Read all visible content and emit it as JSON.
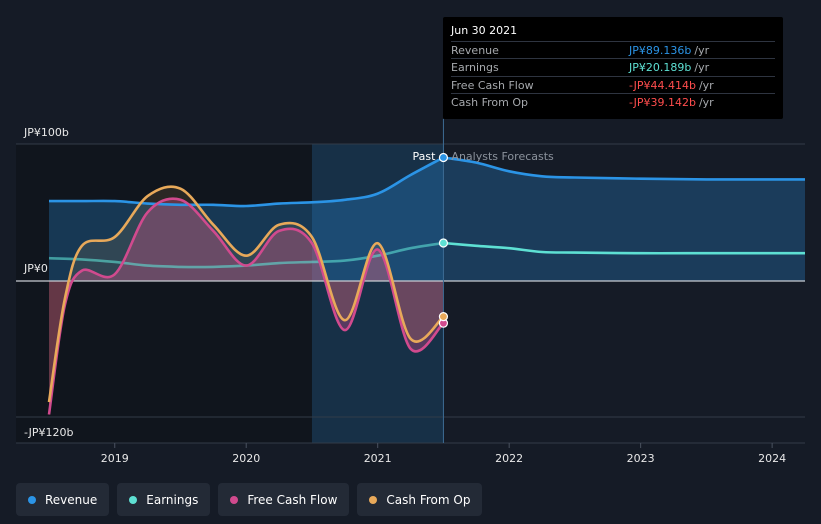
{
  "chart_data": {
    "type": "line",
    "x_axis": {
      "ticks": [
        "2019",
        "2020",
        "2021",
        "2022",
        "2023",
        "2024"
      ],
      "range": [
        2018.5,
        2024.25
      ]
    },
    "y_axis": {
      "labels": [
        "JP¥100b",
        "JP¥0",
        "-JP¥120b"
      ],
      "range": [
        -120,
        100
      ]
    },
    "past_label": "Past",
    "forecast_label": "Analysts Forecasts",
    "past_end_x": 2021.5,
    "highlight_start_x": 2020.5,
    "series": [
      {
        "name": "Revenue",
        "color": "#2b94e6",
        "points": [
          [
            2018.5,
            54
          ],
          [
            2018.75,
            54
          ],
          [
            2019,
            54
          ],
          [
            2019.25,
            52
          ],
          [
            2019.5,
            51
          ],
          [
            2019.75,
            51
          ],
          [
            2020,
            50
          ],
          [
            2020.25,
            52
          ],
          [
            2020.5,
            53
          ],
          [
            2020.75,
            55
          ],
          [
            2021,
            60
          ],
          [
            2021.25,
            75
          ],
          [
            2021.5,
            89.1
          ],
          [
            2021.75,
            85
          ],
          [
            2022,
            78
          ],
          [
            2022.25,
            74
          ],
          [
            2022.5,
            73
          ],
          [
            2023,
            72
          ],
          [
            2023.5,
            71.5
          ],
          [
            2024,
            71.5
          ],
          [
            2024.25,
            71.5
          ]
        ]
      },
      {
        "name": "Earnings",
        "color": "#5ee0d3",
        "points": [
          [
            2018.5,
            8
          ],
          [
            2018.75,
            7
          ],
          [
            2019,
            5
          ],
          [
            2019.25,
            2
          ],
          [
            2019.5,
            1
          ],
          [
            2019.75,
            1
          ],
          [
            2020,
            2
          ],
          [
            2020.25,
            4
          ],
          [
            2020.5,
            5
          ],
          [
            2020.75,
            6
          ],
          [
            2021,
            10
          ],
          [
            2021.25,
            16
          ],
          [
            2021.5,
            20.2
          ],
          [
            2021.75,
            18
          ],
          [
            2022,
            16
          ],
          [
            2022.25,
            13
          ],
          [
            2022.5,
            12.5
          ],
          [
            2023,
            12
          ],
          [
            2023.5,
            12
          ],
          [
            2024,
            12
          ],
          [
            2024.25,
            12
          ]
        ]
      },
      {
        "name": "Free Cash Flow",
        "color": "#d14a8e",
        "points": [
          [
            2018.5,
            -118
          ],
          [
            2018.62,
            -30
          ],
          [
            2018.75,
            -2
          ],
          [
            2019,
            -5
          ],
          [
            2019.25,
            45
          ],
          [
            2019.5,
            55
          ],
          [
            2019.75,
            30
          ],
          [
            2020,
            2
          ],
          [
            2020.25,
            30
          ],
          [
            2020.5,
            20
          ],
          [
            2020.75,
            -50
          ],
          [
            2021,
            15
          ],
          [
            2021.25,
            -65
          ],
          [
            2021.5,
            -44.4
          ]
        ]
      },
      {
        "name": "Cash From Op",
        "color": "#e8a95a",
        "points": [
          [
            2018.5,
            -108
          ],
          [
            2018.62,
            -25
          ],
          [
            2018.75,
            18
          ],
          [
            2019,
            25
          ],
          [
            2019.25,
            58
          ],
          [
            2019.5,
            64
          ],
          [
            2019.75,
            35
          ],
          [
            2020,
            10
          ],
          [
            2020.25,
            35
          ],
          [
            2020.5,
            25
          ],
          [
            2020.75,
            -42
          ],
          [
            2021,
            20
          ],
          [
            2021.25,
            -57
          ],
          [
            2021.5,
            -39.1
          ]
        ]
      }
    ]
  },
  "tooltip": {
    "date": "Jun 30 2021",
    "rows": [
      {
        "label": "Revenue",
        "value": "JP¥89.136b",
        "unit": "/yr",
        "color": "#2b94e6"
      },
      {
        "label": "Earnings",
        "value": "JP¥20.189b",
        "unit": "/yr",
        "color": "#5ee0d3"
      },
      {
        "label": "Free Cash Flow",
        "value": "-JP¥44.414b",
        "unit": "/yr",
        "color": "#ff4d4d"
      },
      {
        "label": "Cash From Op",
        "value": "-JP¥39.142b",
        "unit": "/yr",
        "color": "#ff4d4d"
      }
    ]
  },
  "legend": [
    {
      "label": "Revenue",
      "color": "#2b94e6"
    },
    {
      "label": "Earnings",
      "color": "#5ee0d3"
    },
    {
      "label": "Free Cash Flow",
      "color": "#d14a8e"
    },
    {
      "label": "Cash From Op",
      "color": "#e8a95a"
    }
  ]
}
